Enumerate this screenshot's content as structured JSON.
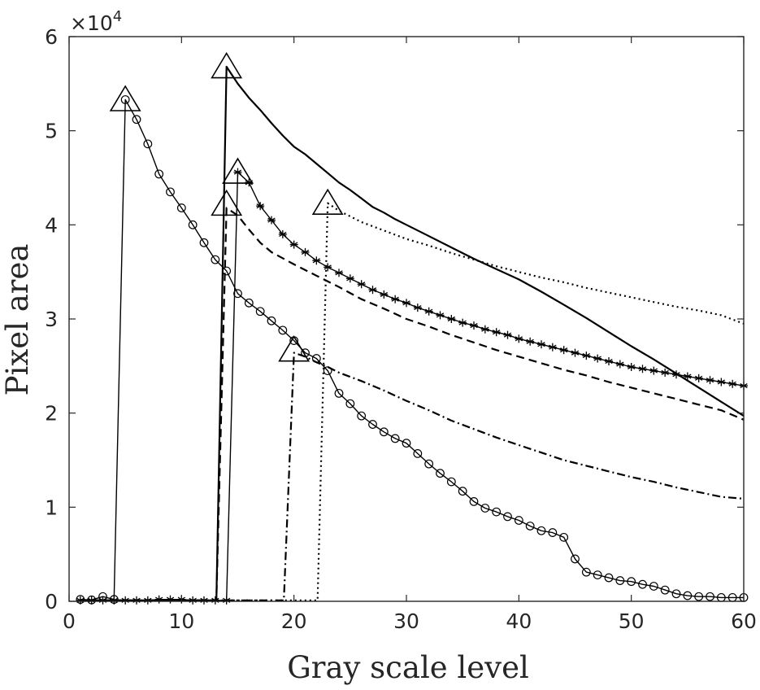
{
  "chart_data": {
    "type": "line",
    "title": "",
    "xlabel": "Gray scale level",
    "ylabel": "Pixel area",
    "y_exponent_label": "×10",
    "y_exponent_power": "4",
    "xlim": [
      0,
      60
    ],
    "ylim": [
      0,
      60000
    ],
    "xticks": [
      0,
      10,
      20,
      30,
      40,
      50,
      60
    ],
    "yticks": [
      0,
      10000,
      20000,
      30000,
      40000,
      50000,
      60000
    ],
    "ytick_labels": [
      "0",
      "1",
      "2",
      "3",
      "4",
      "5",
      "6"
    ],
    "grid": false,
    "legend": "none",
    "series": [
      {
        "line": "solid",
        "marker": "circle",
        "x": [
          1,
          2,
          3,
          4,
          5,
          6,
          7,
          8,
          9,
          10,
          11,
          12,
          13,
          14,
          15,
          16,
          17,
          18,
          19,
          20,
          21,
          22,
          23,
          24,
          25,
          26,
          27,
          28,
          29,
          30,
          31,
          32,
          33,
          34,
          35,
          36,
          37,
          38,
          39,
          40,
          41,
          42,
          43,
          44,
          45,
          46,
          47,
          48,
          49,
          50,
          51,
          52,
          53,
          54,
          55,
          56,
          57,
          58,
          59,
          60
        ],
        "y": [
          200,
          150,
          500,
          200,
          53300,
          51200,
          48600,
          45400,
          43500,
          41800,
          40000,
          38100,
          36300,
          35100,
          32700,
          31700,
          30800,
          29800,
          28800,
          27700,
          26400,
          25800,
          24500,
          22100,
          21000,
          19700,
          18800,
          18000,
          17300,
          16800,
          15700,
          14600,
          13600,
          12700,
          11700,
          10600,
          9900,
          9500,
          9000,
          8600,
          8000,
          7500,
          7300,
          6800,
          4500,
          3100,
          2800,
          2500,
          2200,
          2100,
          1800,
          1600,
          1200,
          800,
          600,
          500,
          500,
          400,
          400,
          400
        ]
      },
      {
        "line": "solid",
        "marker": "none",
        "x": [
          1,
          2,
          3,
          4,
          5,
          6,
          7,
          8,
          9,
          10,
          11,
          12,
          13,
          13.1,
          14,
          15,
          16,
          17,
          18,
          19,
          20,
          21,
          22,
          23,
          24,
          25,
          26,
          27,
          28,
          29,
          30,
          32,
          34,
          36,
          38,
          40,
          42,
          44,
          46,
          48,
          50,
          52,
          54,
          56,
          58,
          60
        ],
        "y": [
          100,
          100,
          100,
          100,
          100,
          100,
          100,
          100,
          100,
          100,
          100,
          100,
          100,
          100,
          56800,
          55000,
          53500,
          52200,
          50800,
          49500,
          48300,
          47500,
          46500,
          45500,
          44500,
          43700,
          42800,
          41900,
          41300,
          40600,
          40000,
          38800,
          37600,
          36400,
          35300,
          34200,
          32900,
          31500,
          30100,
          28600,
          27100,
          25700,
          24200,
          22700,
          21200,
          19700
        ]
      },
      {
        "line": "dotted",
        "marker": "none",
        "x": [
          1,
          5,
          10,
          15,
          20,
          21,
          22,
          22.1,
          23,
          24,
          26,
          28,
          30,
          32,
          34,
          36,
          38,
          40,
          42,
          44,
          46,
          48,
          50,
          52,
          54,
          56,
          58,
          60
        ],
        "y": [
          100,
          100,
          100,
          100,
          100,
          100,
          100,
          100,
          42300,
          41500,
          40300,
          39400,
          38500,
          37800,
          37000,
          36300,
          35600,
          35000,
          34400,
          33900,
          33300,
          32800,
          32300,
          31800,
          31300,
          30900,
          30400,
          29500
        ]
      },
      {
        "line": "dashed",
        "marker": "none",
        "x": [
          1,
          5,
          10,
          13,
          13.1,
          14,
          15,
          16,
          17,
          18,
          20,
          22,
          24,
          26,
          28,
          30,
          32,
          34,
          36,
          38,
          40,
          42,
          44,
          46,
          48,
          50,
          52,
          54,
          56,
          58,
          60
        ],
        "y": [
          100,
          100,
          100,
          100,
          100,
          41800,
          41000,
          39500,
          38100,
          37100,
          35800,
          34600,
          33400,
          32100,
          31100,
          30000,
          29200,
          28300,
          27500,
          26700,
          26000,
          25300,
          24600,
          24000,
          23300,
          22700,
          22100,
          21500,
          20900,
          20300,
          19300
        ]
      },
      {
        "line": "solid-thin",
        "marker": "star",
        "x": [
          1,
          2,
          3,
          4,
          5,
          6,
          7,
          8,
          9,
          10,
          11,
          12,
          13,
          14,
          15,
          16,
          17,
          18,
          19,
          20,
          21,
          22,
          23,
          24,
          25,
          26,
          27,
          28,
          29,
          30,
          31,
          32,
          33,
          34,
          35,
          36,
          37,
          38,
          39,
          40,
          41,
          42,
          43,
          44,
          45,
          46,
          47,
          48,
          49,
          50,
          51,
          52,
          53,
          54,
          55,
          56,
          57,
          58,
          59,
          60
        ],
        "y": [
          100,
          100,
          100,
          100,
          100,
          100,
          100,
          200,
          200,
          200,
          100,
          100,
          100,
          100,
          45600,
          44500,
          42000,
          40500,
          39000,
          37900,
          37100,
          36200,
          35500,
          34900,
          34300,
          33700,
          33100,
          32600,
          32100,
          31700,
          31200,
          30800,
          30400,
          30000,
          29600,
          29300,
          28900,
          28600,
          28300,
          27900,
          27600,
          27300,
          27000,
          26700,
          26400,
          26100,
          25800,
          25500,
          25200,
          24900,
          24700,
          24500,
          24300,
          24100,
          23900,
          23700,
          23500,
          23300,
          23100,
          22900
        ]
      },
      {
        "line": "dashdot",
        "marker": "none",
        "x": [
          1,
          5,
          10,
          15,
          18,
          19,
          19.1,
          20,
          21,
          22,
          23,
          24,
          26,
          28,
          30,
          32,
          34,
          36,
          38,
          40,
          42,
          44,
          46,
          48,
          50,
          52,
          54,
          56,
          58,
          60
        ],
        "y": [
          100,
          100,
          100,
          100,
          100,
          100,
          100,
          26400,
          26000,
          25400,
          24900,
          24300,
          23400,
          22400,
          21300,
          20300,
          19200,
          18300,
          17400,
          16600,
          15800,
          15000,
          14400,
          13800,
          13200,
          12700,
          12100,
          11600,
          11100,
          10900
        ]
      }
    ],
    "peaks": [
      {
        "x": 5,
        "y": 53300
      },
      {
        "x": 14,
        "y": 56800
      },
      {
        "x": 14,
        "y": 42200
      },
      {
        "x": 15,
        "y": 45600
      },
      {
        "x": 23,
        "y": 42300
      },
      {
        "x": 20,
        "y": 26700
      }
    ]
  }
}
